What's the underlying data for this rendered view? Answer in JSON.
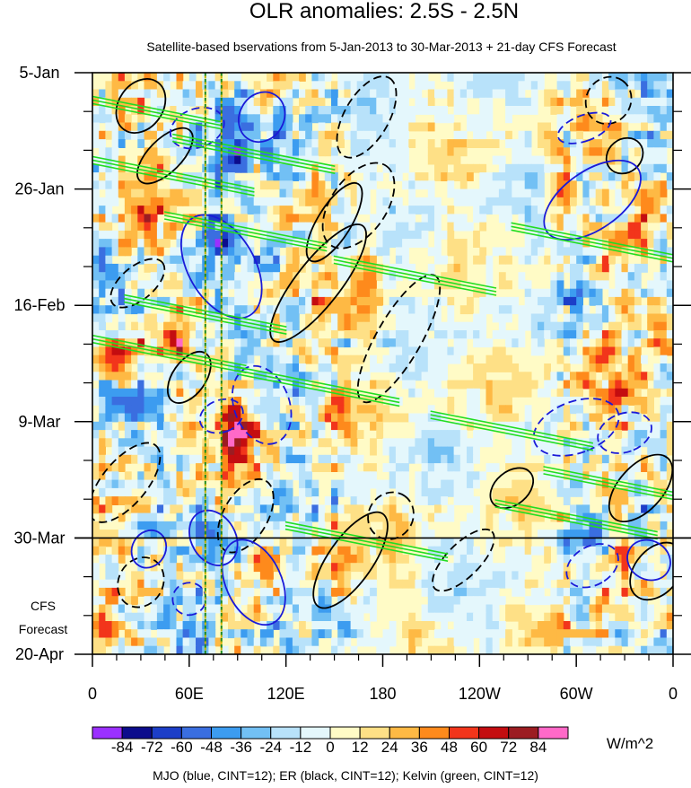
{
  "chart_data": {
    "type": "heatmap",
    "title": "OLR anomalies: 2.5S - 2.5N",
    "subtitle": "Satellite-based bservations from 5-Jan-2013 to 30-Mar-2013 + 21-day CFS Forecast",
    "x_ticks": [
      {
        "lon": 0,
        "label": "0"
      },
      {
        "lon": 60,
        "label": "60E"
      },
      {
        "lon": 120,
        "label": "120E"
      },
      {
        "lon": 180,
        "label": "180"
      },
      {
        "lon": 240,
        "label": "120W"
      },
      {
        "lon": 300,
        "label": "60W"
      },
      {
        "lon": 360,
        "label": "0"
      }
    ],
    "xlim": [
      0,
      360
    ],
    "y_ticks": [
      {
        "day": 0,
        "label": "5-Jan"
      },
      {
        "day": 21,
        "label": "26-Jan"
      },
      {
        "day": 42,
        "label": "16-Feb"
      },
      {
        "day": 63,
        "label": "9-Mar"
      },
      {
        "day": 84,
        "label": "30-Mar"
      },
      {
        "day": 105,
        "label": "20-Apr"
      }
    ],
    "ylim_days": [
      0,
      105
    ],
    "forecast_start_day": 84,
    "forecast_label_line1": "CFS",
    "forecast_label_line2": "Forecast",
    "colorbar": {
      "unit": "W/m^2",
      "levels": [
        -84,
        -72,
        -60,
        -48,
        -36,
        -24,
        -12,
        0,
        12,
        24,
        36,
        48,
        60,
        72,
        84
      ],
      "labels": [
        "-84",
        "-72",
        "-60",
        "-48",
        "-36",
        "-24",
        "-12",
        "0",
        "12",
        "24",
        "36",
        "48",
        "60",
        "72",
        "84"
      ],
      "colors": [
        "#9b30ff",
        "#0c0c8c",
        "#1c3ec8",
        "#3a6ee0",
        "#3c9cf0",
        "#72c0f4",
        "#b8e2fa",
        "#e4f7fc",
        "#fffbc6",
        "#fee086",
        "#feb944",
        "#fe8a1c",
        "#f2351b",
        "#c40d10",
        "#9c1c22",
        "#ff69c8"
      ]
    },
    "footnote": "MJO (blue, CINT=12); ER (black, CINT=12); Kelvin (green, CINT=12)",
    "series": [
      {
        "name": "MJO",
        "color": "#1a1ad8"
      },
      {
        "name": "ER",
        "color": "#000000"
      },
      {
        "name": "Kelvin",
        "color": "#22dd22"
      }
    ],
    "reference_lines_lon": [
      70,
      80
    ]
  }
}
